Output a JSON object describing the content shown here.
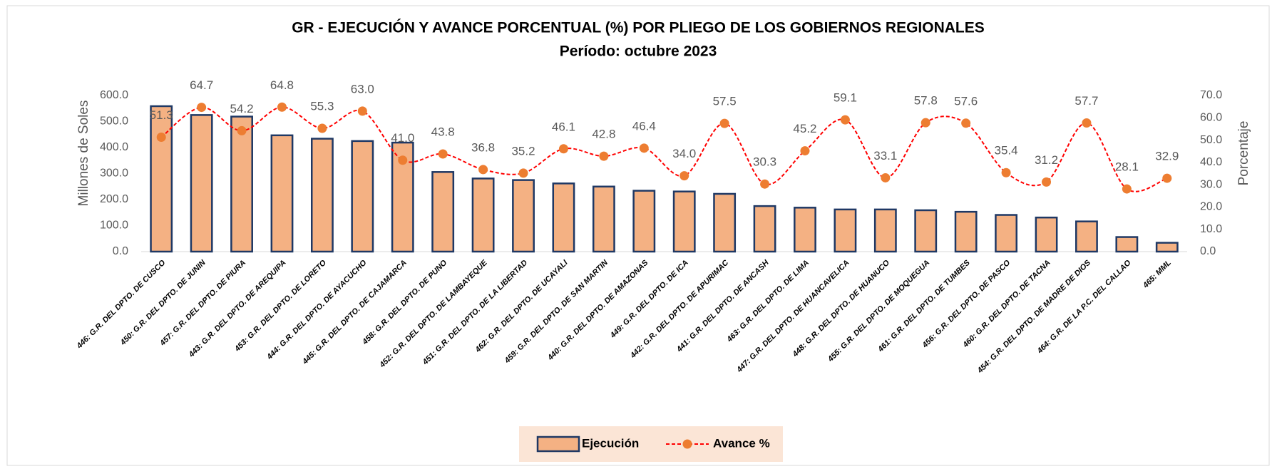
{
  "chart_data": {
    "type": "bar_line",
    "title": "GR - EJECUCIÓN  Y AVANCE PORCENTUAL (%) POR PLIEGO DE LOS GOBIERNOS REGIONALES",
    "subtitle": "Período:  octubre  2023",
    "y_label": "Millones de Soles",
    "y2_label": "Porcentaje",
    "categories": [
      "446: G.R. DEL DPTO. DE CUSCO",
      "450: G.R. DEL DPTO. DE JUNIN",
      "457: G.R. DEL DPTO. DE PIURA",
      "443: G.R. DEL DPTO. DE AREQUIPA",
      "453: G.R. DEL DPTO. DE LORETO",
      "444: G.R. DEL DPTO. DE AYACUCHO",
      "445: G.R. DEL DPTO. DE CAJAMARCA",
      "458: G.R. DEL DPTO. DE PUNO",
      "452: G.R. DEL DPTO. DE LAMBAYEQUE",
      "451: G.R. DEL DPTO. DE LA LIBERTAD",
      "462: G.R. DEL DPTO. DE UCAYALI",
      "459: G.R. DEL DPTO. DE SAN MARTIN",
      "440: G.R. DEL DPTO. DE AMAZONAS",
      "449: G.R. DEL DPTO. DE ICA",
      "442: G.R. DEL DPTO. DE APURIMAC",
      "441: G.R. DEL DPTO. DE ANCASH",
      "463: G.R. DEL DPTO. DE LIMA",
      "447: G.R. DEL DPTO. DE HUANCAVELICA",
      "448: G.R. DEL DPTO. DE HUANUCO",
      "455: G.R. DEL DPTO. DE MOQUEGUA",
      "461: G.R. DEL DPTO. DE TUMBES",
      "456: G.R. DEL DPTO. DE PASCO",
      "460: G.R. DEL DPTO. DE TACNA",
      "454: G.R. DEL DPTO. DE MADRE DE DIOS",
      "464: G.R. DE LA P.C. DEL CALLAO",
      "465: MML"
    ],
    "series": [
      {
        "name": "Ejecución",
        "type": "bar",
        "color": "#f4b183",
        "edge_color": "#1f3864",
        "values": [
          559,
          525,
          519,
          447,
          434,
          425,
          419,
          306,
          281,
          275,
          262,
          250,
          234,
          231,
          222,
          175,
          169,
          162,
          162,
          159,
          153,
          141,
          131,
          116,
          56,
          34
        ]
      },
      {
        "name": "Avance %",
        "type": "line",
        "axis": "y2",
        "color": "#ff0000",
        "marker_color": "#ed7d31",
        "values": [
          51.3,
          64.7,
          54.2,
          64.8,
          55.3,
          63.0,
          41.0,
          43.8,
          36.8,
          35.2,
          46.1,
          42.8,
          46.4,
          34.0,
          57.5,
          30.3,
          45.2,
          59.1,
          33.1,
          57.8,
          57.6,
          35.4,
          31.2,
          57.7,
          28.1,
          32.9
        ],
        "value_labels": [
          "51.3",
          "64.7",
          "54.2",
          "64.8",
          "55.3",
          "63.0",
          "41.0",
          "43.8",
          "36.8",
          "35.2",
          "46.1",
          "42.8",
          "46.4",
          "34.0",
          "57.5",
          "30.3",
          "45.2",
          "59.1",
          "33.1",
          "57.8",
          "57.6",
          "35.4",
          "31.2",
          "57.7",
          "28.1",
          "32.9"
        ]
      }
    ],
    "ylim": [
      0,
      600
    ],
    "yticks": [
      {
        "value": 0,
        "label": "0.0"
      },
      {
        "value": 100,
        "label": "100.0"
      },
      {
        "value": 200,
        "label": "200.0"
      },
      {
        "value": 300,
        "label": "300.0"
      },
      {
        "value": 400,
        "label": "400.0"
      },
      {
        "value": 500,
        "label": "500.0"
      },
      {
        "value": 600,
        "label": "600.0"
      }
    ],
    "y2lim": [
      0,
      70
    ],
    "y2ticks": [
      {
        "value": 0,
        "label": "0.0"
      },
      {
        "value": 10,
        "label": "10.0"
      },
      {
        "value": 20,
        "label": "20.0"
      },
      {
        "value": 30,
        "label": "30.0"
      },
      {
        "value": 40,
        "label": "40.0"
      },
      {
        "value": 50,
        "label": "50.0"
      },
      {
        "value": 60,
        "label": "60.0"
      },
      {
        "value": 70,
        "label": "70.0"
      }
    ],
    "grid": false,
    "legend": "bottom"
  }
}
